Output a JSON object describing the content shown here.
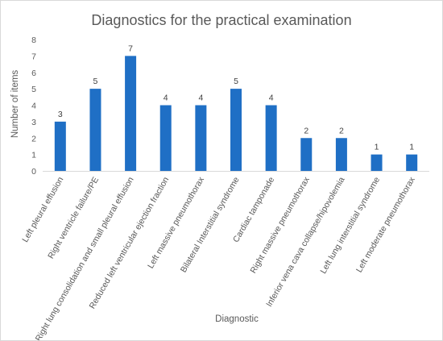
{
  "chart_data": {
    "type": "bar",
    "title": "Diagnostics for the practical examination",
    "xlabel": "Diagnostic",
    "ylabel": "Number of items",
    "ylim": [
      0,
      8
    ],
    "yticks": [
      "0",
      "1",
      "2",
      "3",
      "4",
      "5",
      "6",
      "7",
      "8"
    ],
    "grid": false,
    "legend": "none",
    "color": "#1f6fc5",
    "categories": [
      "Left pleural effusion",
      "Right ventricle failure/PE",
      "Right lung consolidation and small pleural effusion",
      "Reduced left ventricular ejection fraction",
      "Left massive pneumothorax",
      "Bilateral Interstitial syndrome",
      "Cardiac tamponade",
      "Right massive pneumothorax",
      "Inferior vena cava collapse/hipovolemia",
      "Left lung interstitial syndrome",
      "Left moderate pneumothorax"
    ],
    "values": [
      3,
      5,
      7,
      4,
      4,
      5,
      4,
      2,
      2,
      1,
      1
    ],
    "data_labels": [
      "3",
      "5",
      "7",
      "4",
      "4",
      "5",
      "4",
      "2",
      "2",
      "1",
      "1"
    ]
  }
}
